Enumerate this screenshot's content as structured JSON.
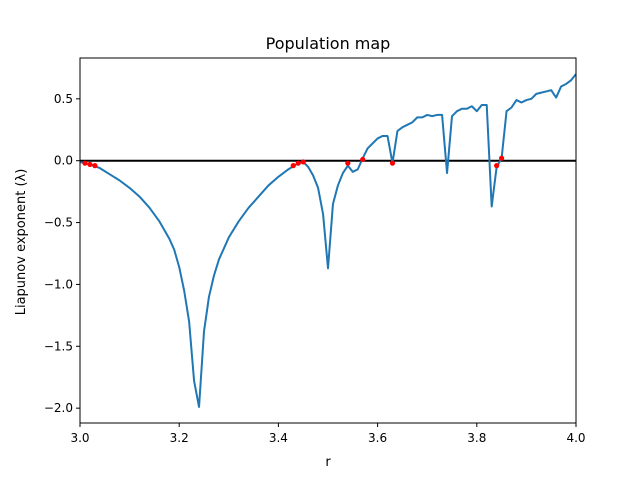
{
  "chart_data": {
    "type": "line",
    "title": "Population map",
    "xlabel": "r",
    "ylabel": "Liapunov exponent (λ)",
    "xlim": [
      3.0,
      4.0
    ],
    "ylim": [
      -2.12,
      0.83
    ],
    "grid": false,
    "x_ticks": [
      {
        "value": 3.0,
        "label": "3.0"
      },
      {
        "value": 3.2,
        "label": "3.2"
      },
      {
        "value": 3.4,
        "label": "3.4"
      },
      {
        "value": 3.6,
        "label": "3.6"
      },
      {
        "value": 3.8,
        "label": "3.8"
      },
      {
        "value": 4.0,
        "label": "4.0"
      }
    ],
    "y_ticks": [
      {
        "value": 0.5,
        "label": "0.5"
      },
      {
        "value": 0.0,
        "label": "0.0"
      },
      {
        "value": -0.5,
        "label": "−0.5"
      },
      {
        "value": -1.0,
        "label": "−1.0"
      },
      {
        "value": -1.5,
        "label": "−1.5"
      },
      {
        "value": -2.0,
        "label": "−2.0"
      }
    ],
    "reference_line": {
      "y": 0.0,
      "color": "#000000"
    },
    "series": [
      {
        "color": "#1f77b4",
        "x": [
          3.0,
          3.02,
          3.04,
          3.06,
          3.08,
          3.1,
          3.12,
          3.14,
          3.16,
          3.18,
          3.19,
          3.2,
          3.21,
          3.22,
          3.23,
          3.24,
          3.25,
          3.26,
          3.27,
          3.28,
          3.3,
          3.32,
          3.34,
          3.36,
          3.38,
          3.4,
          3.42,
          3.44,
          3.45,
          3.46,
          3.47,
          3.48,
          3.49,
          3.5,
          3.51,
          3.52,
          3.53,
          3.54,
          3.55,
          3.56,
          3.57,
          3.58,
          3.59,
          3.6,
          3.61,
          3.62,
          3.63,
          3.64,
          3.65,
          3.66,
          3.67,
          3.68,
          3.69,
          3.7,
          3.71,
          3.72,
          3.73,
          3.74,
          3.75,
          3.76,
          3.77,
          3.78,
          3.79,
          3.8,
          3.81,
          3.82,
          3.83,
          3.84,
          3.85,
          3.86,
          3.87,
          3.88,
          3.89,
          3.9,
          3.91,
          3.92,
          3.93,
          3.94,
          3.95,
          3.96,
          3.97,
          3.98,
          3.99,
          4.0
        ],
        "y": [
          -0.01,
          -0.03,
          -0.06,
          -0.11,
          -0.16,
          -0.22,
          -0.29,
          -0.38,
          -0.49,
          -0.63,
          -0.72,
          -0.86,
          -1.05,
          -1.3,
          -1.78,
          -1.99,
          -1.38,
          -1.1,
          -0.93,
          -0.8,
          -0.62,
          -0.49,
          -0.38,
          -0.29,
          -0.2,
          -0.13,
          -0.07,
          -0.02,
          -0.01,
          -0.05,
          -0.12,
          -0.22,
          -0.43,
          -0.87,
          -0.35,
          -0.2,
          -0.1,
          -0.04,
          -0.09,
          -0.07,
          0.02,
          0.1,
          0.14,
          0.18,
          0.2,
          0.2,
          -0.02,
          0.24,
          0.27,
          0.29,
          0.31,
          0.35,
          0.35,
          0.37,
          0.36,
          0.37,
          0.37,
          -0.1,
          0.36,
          0.4,
          0.42,
          0.42,
          0.44,
          0.4,
          0.45,
          0.45,
          -0.37,
          -0.05,
          0.02,
          0.4,
          0.43,
          0.49,
          0.47,
          0.49,
          0.5,
          0.54,
          0.55,
          0.56,
          0.57,
          0.51,
          0.6,
          0.62,
          0.65,
          0.7
        ]
      }
    ],
    "markers": {
      "color": "#ff0000",
      "points": [
        {
          "x": 3.01,
          "y": -0.02
        },
        {
          "x": 3.02,
          "y": -0.03
        },
        {
          "x": 3.03,
          "y": -0.04
        },
        {
          "x": 3.43,
          "y": -0.04
        },
        {
          "x": 3.44,
          "y": -0.02
        },
        {
          "x": 3.45,
          "y": -0.01
        },
        {
          "x": 3.54,
          "y": -0.02
        },
        {
          "x": 3.57,
          "y": 0.01
        },
        {
          "x": 3.63,
          "y": -0.02
        },
        {
          "x": 3.84,
          "y": -0.04
        },
        {
          "x": 3.85,
          "y": 0.02
        }
      ]
    }
  }
}
